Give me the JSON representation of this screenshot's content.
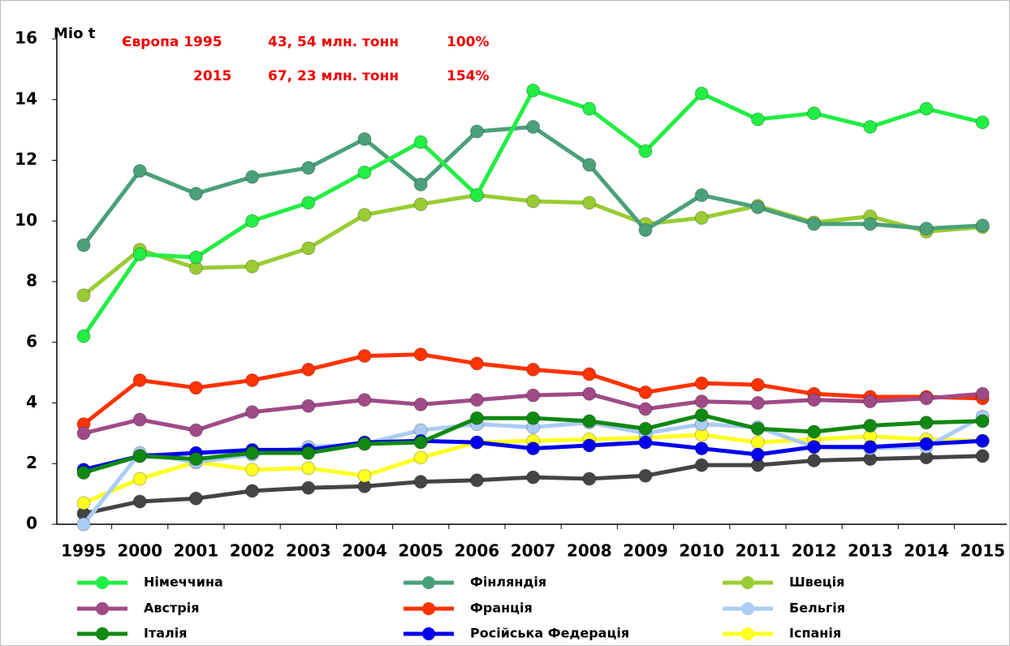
{
  "chart_data": {
    "type": "line",
    "y_label": "Mio t",
    "annotations": [
      "Європа 1995",
      "43, 54 млн. тонн",
      "100%",
      "2015",
      "67, 23 млн. тонн",
      "154%"
    ],
    "categories": [
      "1995",
      "2000",
      "2001",
      "2002",
      "2003",
      "2004",
      "2005",
      "2006",
      "2007",
      "2008",
      "2009",
      "2010",
      "2011",
      "2012",
      "2013",
      "2014",
      "2015"
    ],
    "ylim": [
      0,
      16
    ],
    "yticks": [
      0,
      2,
      4,
      6,
      8,
      10,
      12,
      14,
      16
    ],
    "series": [
      {
        "name": "Німеччина",
        "color": "#22ee44",
        "values": [
          6.2,
          8.9,
          8.8,
          10.0,
          10.6,
          11.6,
          12.6,
          10.85,
          14.3,
          13.7,
          12.3,
          14.2,
          13.35,
          13.55,
          13.1,
          13.7,
          13.25
        ]
      },
      {
        "name": "Австрія",
        "color": "#a04a88",
        "values": [
          3.0,
          3.45,
          3.1,
          3.7,
          3.9,
          4.1,
          3.95,
          4.1,
          4.25,
          4.3,
          3.8,
          4.05,
          4.0,
          4.1,
          4.05,
          4.15,
          4.3
        ]
      },
      {
        "name": "Італія",
        "color": "#118811",
        "values": [
          1.7,
          2.25,
          2.15,
          2.35,
          2.35,
          2.65,
          2.7,
          3.5,
          3.5,
          3.4,
          3.15,
          3.6,
          3.15,
          3.05,
          3.25,
          3.35,
          3.4
        ]
      },
      {
        "name": "Фінляндія",
        "color": "#4aa07a",
        "values": [
          9.2,
          11.65,
          10.9,
          11.45,
          11.75,
          12.7,
          11.2,
          12.95,
          13.1,
          11.85,
          9.7,
          10.85,
          10.45,
          9.9,
          9.9,
          9.75,
          9.85
        ]
      },
      {
        "name": "Франція",
        "color": "#ff3300",
        "values": [
          3.3,
          4.75,
          4.5,
          4.75,
          5.1,
          5.55,
          5.6,
          5.3,
          5.1,
          4.95,
          4.35,
          4.65,
          4.6,
          4.3,
          4.2,
          4.2,
          4.15
        ]
      },
      {
        "name": "Російська Федерація",
        "color": "#0000ee",
        "values": [
          1.8,
          2.25,
          2.35,
          2.45,
          2.45,
          2.7,
          2.75,
          2.7,
          2.5,
          2.6,
          2.7,
          2.5,
          2.3,
          2.55,
          2.55,
          2.65,
          2.75
        ]
      },
      {
        "name": "Швеція",
        "color": "#99cc33",
        "values": [
          7.55,
          9.05,
          8.45,
          8.5,
          9.1,
          10.2,
          10.55,
          10.85,
          10.65,
          10.6,
          9.9,
          10.1,
          10.5,
          9.95,
          10.15,
          9.65,
          9.8
        ]
      },
      {
        "name": "Бельгія",
        "color": "#aaccf5",
        "values": [
          0.0,
          2.35,
          2.05,
          2.3,
          2.55,
          2.65,
          3.1,
          3.3,
          3.2,
          3.35,
          3.0,
          3.3,
          3.2,
          2.55,
          2.5,
          2.55,
          3.55
        ]
      },
      {
        "name": "Іспанія",
        "color": "#ffff22",
        "values": [
          0.7,
          1.5,
          2.05,
          1.8,
          1.85,
          1.6,
          2.2,
          2.7,
          2.75,
          2.8,
          2.85,
          2.95,
          2.7,
          2.8,
          2.9,
          2.8,
          2.75
        ]
      },
      {
        "color": "#444444",
        "values": [
          0.35,
          0.75,
          0.85,
          1.1,
          1.2,
          1.25,
          1.4,
          1.45,
          1.55,
          1.5,
          1.6,
          1.95,
          1.95,
          2.1,
          2.15,
          2.2,
          2.25
        ]
      }
    ]
  }
}
